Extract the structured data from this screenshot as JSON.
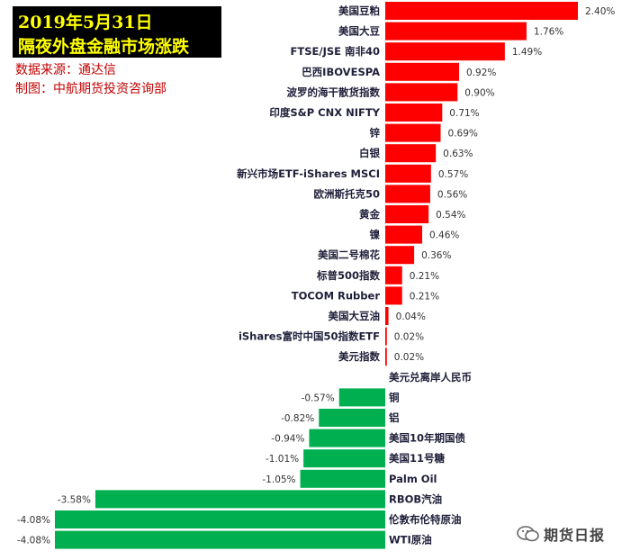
{
  "title": {
    "line1": "2019年5月31日",
    "line2": "隔夜外盘金融市场涨跌"
  },
  "source": "数据来源：通达信",
  "credit": "制图：中航期货投资咨询部",
  "watermark": "期货日报",
  "colors": {
    "positive": "#ff0000",
    "negative": "#00b050",
    "title_bg": "#000000",
    "title_text": "#ffff00",
    "source_text": "#c00000"
  },
  "chart_data": {
    "type": "bar",
    "orientation": "horizontal",
    "value_unit": "%",
    "categories": [
      "美国豆粕",
      "美国大豆",
      "FTSE/JSE 南非40",
      "巴西IBOVESPA",
      "波罗的海干散货指数",
      "印度S&P CNX NIFTY",
      "锌",
      "白银",
      "新兴市场ETF-iShares MSCI",
      "欧洲斯托克50",
      "黄金",
      "镍",
      "美国二号棉花",
      "标普500指数",
      "TOCOM Rubber",
      "美国大豆油",
      "iShares富时中国50指数ETF",
      "美元指数",
      "美元兑离岸人民币",
      "铜",
      "铝",
      "美国10年期国债",
      "美国11号糖",
      "Palm Oil",
      "RBOB汽油",
      "伦敦布伦特原油",
      "WTI原油"
    ],
    "values": [
      2.4,
      1.76,
      1.49,
      0.92,
      0.9,
      0.71,
      0.69,
      0.63,
      0.57,
      0.56,
      0.54,
      0.46,
      0.36,
      0.21,
      0.21,
      0.04,
      0.02,
      0.02,
      null,
      -0.57,
      -0.82,
      -0.94,
      -1.01,
      -1.05,
      -3.58,
      -4.08,
      -4.08
    ],
    "value_labels": [
      "2.40%",
      "1.76%",
      "1.49%",
      "0.92%",
      "0.90%",
      "0.71%",
      "0.69%",
      "0.63%",
      "0.57%",
      "0.56%",
      "0.54%",
      "0.46%",
      "0.36%",
      "0.21%",
      "0.21%",
      "0.04%",
      "0.02%",
      "0.02%",
      "",
      "-0.57%",
      "-0.82%",
      "-0.94%",
      "-1.01%",
      "-1.05%",
      "-3.58%",
      "-4.08%",
      "-4.08%"
    ],
    "xlim": [
      -4.08,
      2.4
    ],
    "grid": false,
    "legend": false
  }
}
